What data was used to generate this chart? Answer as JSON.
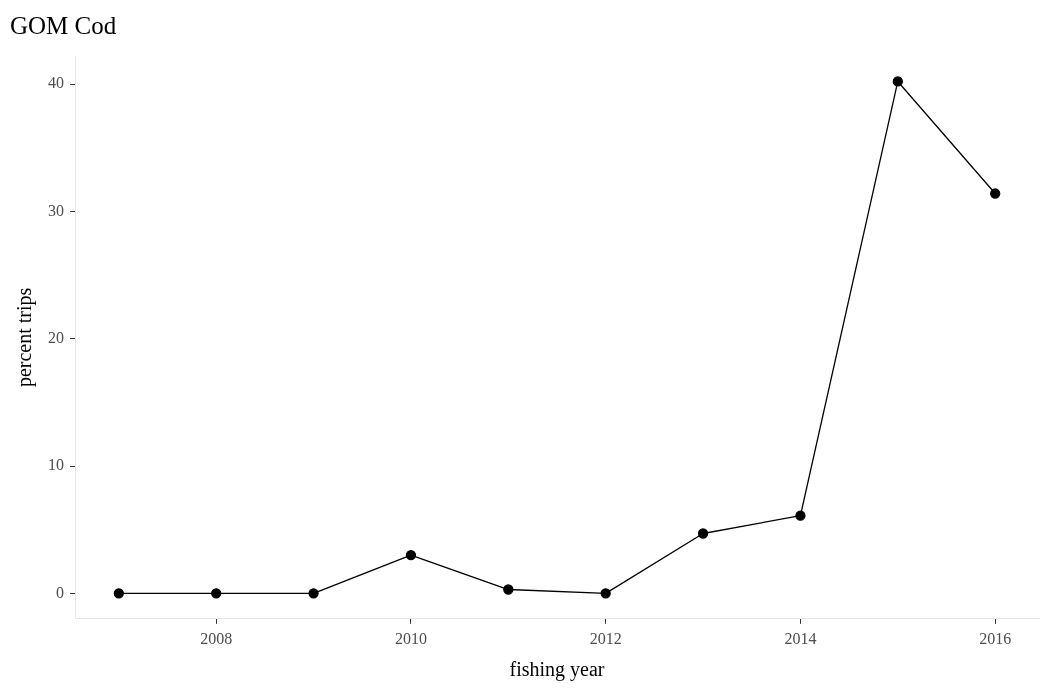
{
  "chart_data": {
    "type": "line",
    "title": "GOM Cod",
    "xlabel": "fishing year",
    "ylabel": "percent trips",
    "x": [
      2007,
      2008,
      2009,
      2010,
      2011,
      2012,
      2013,
      2014,
      2015,
      2016
    ],
    "values": [
      0,
      0,
      0,
      3.0,
      0.3,
      0,
      4.7,
      6.1,
      40.2,
      31.4
    ],
    "color": "#000000",
    "marker": "circle",
    "line_style": "solid",
    "xlim": [
      2006.55,
      2016.45
    ],
    "xticks": [
      2008,
      2010,
      2012,
      2014,
      2016
    ],
    "ylim": [
      -2.0,
      42.2
    ],
    "yticks": [
      0,
      10,
      20,
      30,
      40
    ],
    "grid": false,
    "legend": false
  }
}
